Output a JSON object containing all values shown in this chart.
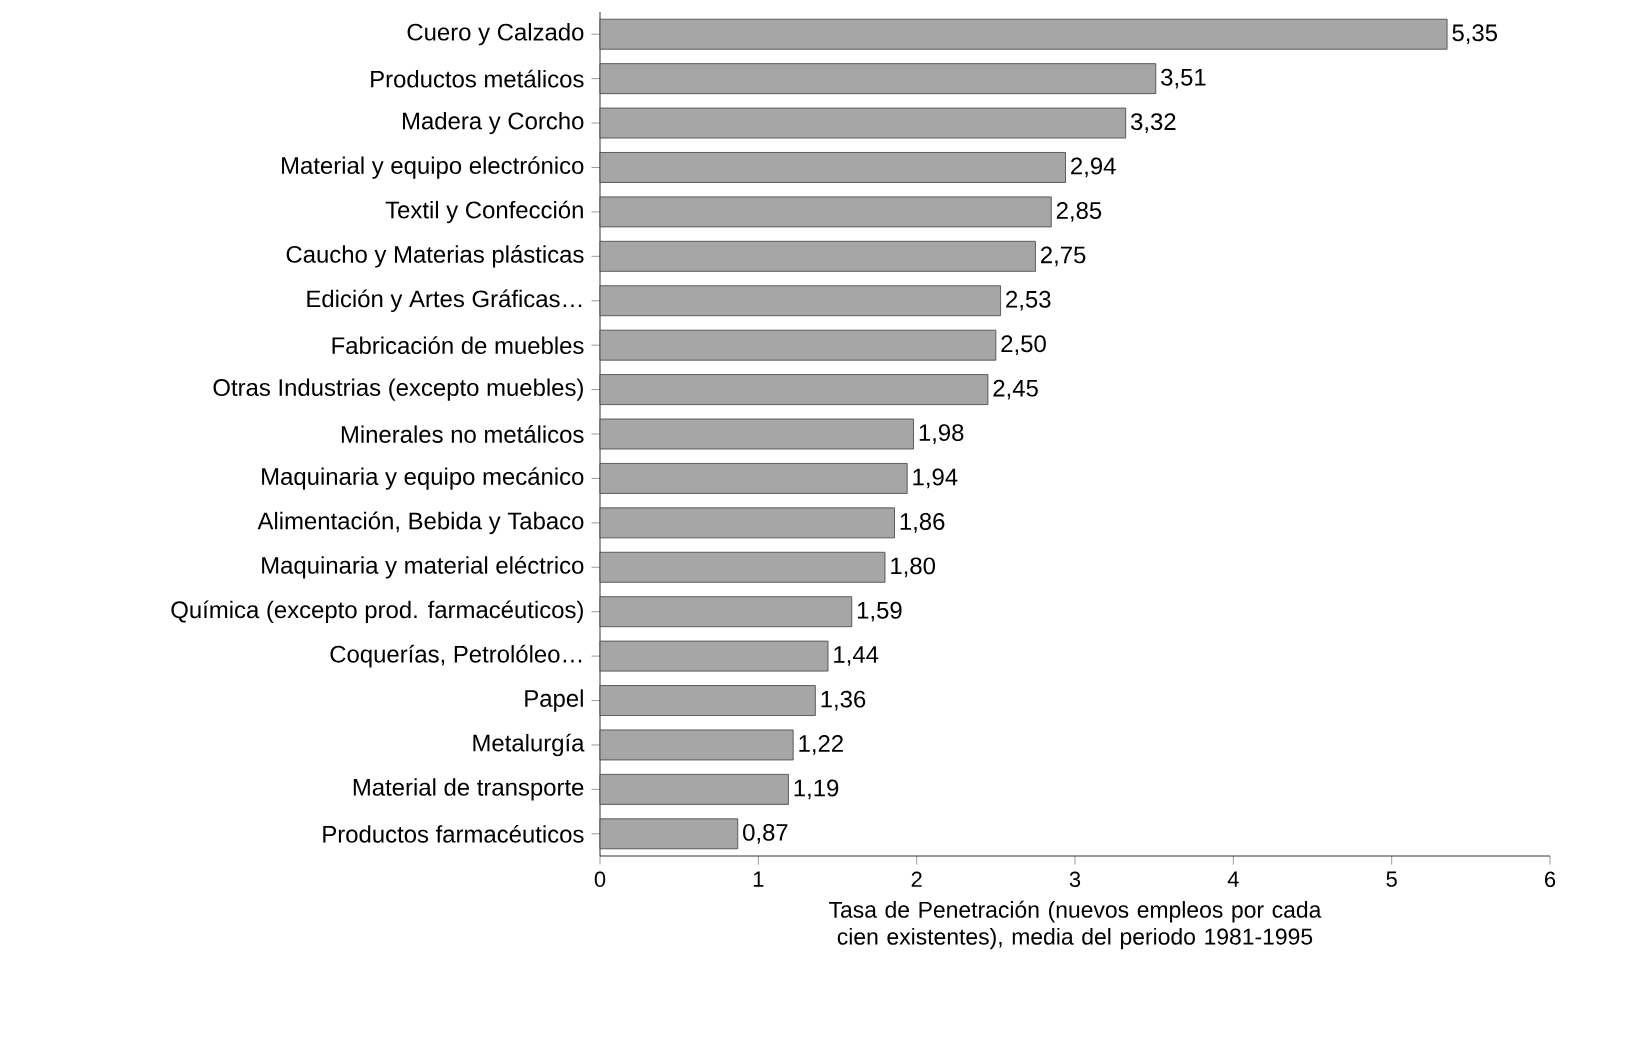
{
  "chart_data": {
    "type": "bar",
    "orientation": "horizontal",
    "xlabel": "Tasa de Penetración (nuevos empleos por cada cien existentes), media del periodo 1981-1995",
    "categories": [
      "Cuero y Calzado",
      "Productos metálicos",
      "Madera y Corcho",
      "Material y equipo electrónico",
      "Textil y Confección",
      "Caucho y Materias plásticas",
      "Edición y Artes Gráficas…",
      "Fabricación de muebles",
      "Otras Industrias (excepto muebles)",
      "Minerales no metálicos",
      "Maquinaria y equipo mecánico",
      "Alimentación, Bebida y Tabaco",
      "Maquinaria y material eléctrico",
      "Química (excepto prod. farmacéuticos)",
      "Coquerías, Petrolóleo…",
      "Papel",
      "Metalurgía",
      "Material de transporte",
      "Productos farmacéuticos"
    ],
    "values": [
      5.35,
      3.51,
      3.32,
      2.94,
      2.85,
      2.75,
      2.53,
      2.5,
      2.45,
      1.98,
      1.94,
      1.86,
      1.8,
      1.59,
      1.44,
      1.36,
      1.22,
      1.19,
      0.87
    ],
    "value_labels": [
      "5,35",
      "3,51",
      "3,32",
      "2,94",
      "2,85",
      "2,75",
      "2,53",
      "2,50",
      "2,45",
      "1,98",
      "1,94",
      "1,86",
      "1,80",
      "1,59",
      "1,44",
      "1,36",
      "1,22",
      "1,19",
      "0,87"
    ],
    "color": "#a6a6a6",
    "xlim": [
      0,
      6
    ],
    "xticks": [
      0,
      1,
      2,
      3,
      4,
      5,
      6
    ]
  }
}
